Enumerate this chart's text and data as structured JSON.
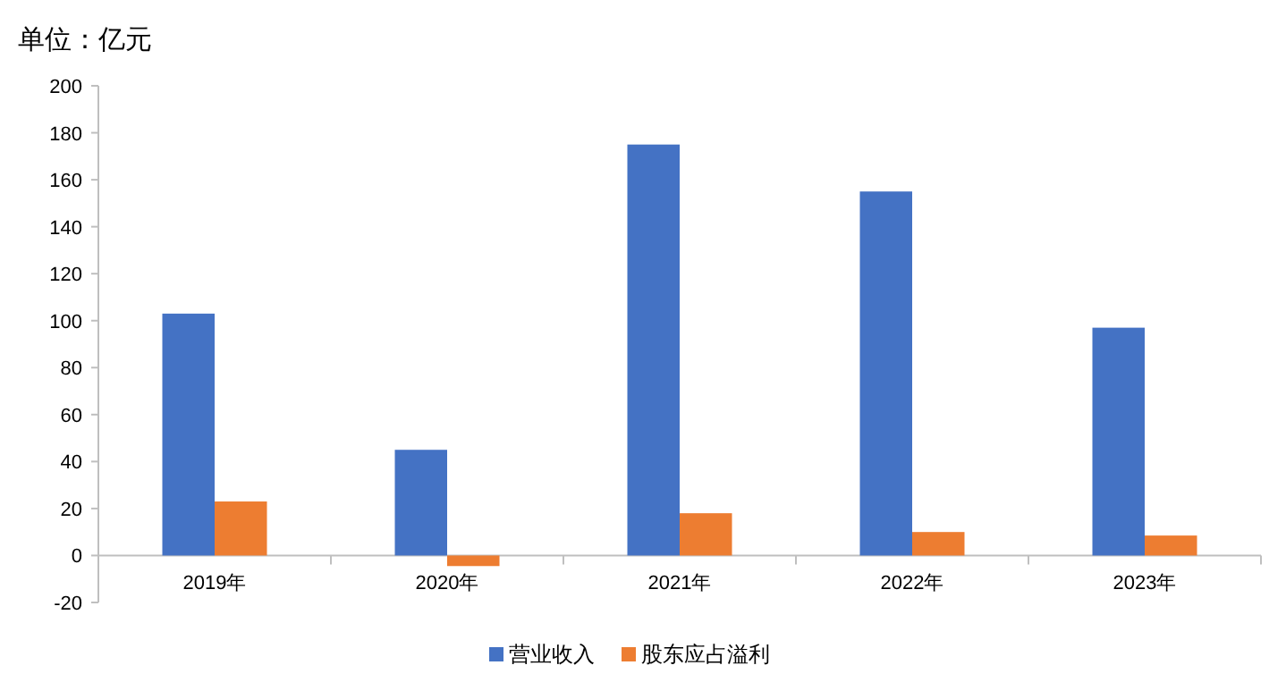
{
  "chart_data": {
    "type": "bar",
    "title": "单位：亿元",
    "categories": [
      "2019年",
      "2020年",
      "2021年",
      "2022年",
      "2023年"
    ],
    "series": [
      {
        "name": "营业收入",
        "color": "#4472c4",
        "values": [
          103,
          45,
          175,
          155,
          97
        ]
      },
      {
        "name": "股东应占溢利",
        "color": "#ed7d31",
        "values": [
          23,
          -4.5,
          18,
          10,
          8.5
        ]
      }
    ],
    "ylim": [
      -20,
      200
    ],
    "yticks": [
      -20,
      0,
      20,
      40,
      60,
      80,
      100,
      120,
      140,
      160,
      180,
      200
    ],
    "grid": false,
    "legend": "bottom"
  }
}
